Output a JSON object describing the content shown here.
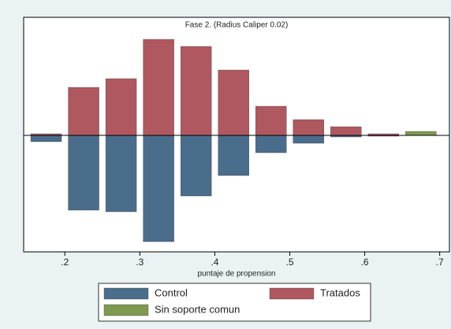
{
  "chart_data": {
    "type": "mirrored_histogram",
    "title": "Fase 2. (Radius Caliper 0.02)",
    "x_label": "puntaje de propension",
    "bins": [
      0.15,
      0.2,
      0.25,
      0.3,
      0.35,
      0.4,
      0.45,
      0.5,
      0.55,
      0.6,
      0.65,
      0.7
    ],
    "series": [
      {
        "name": "Control",
        "color": "#4a6d8c",
        "values": [
          -8,
          -95,
          -97,
          -135,
          -77,
          -51,
          -22,
          -10,
          -2,
          -1,
          0
        ]
      },
      {
        "name": "Tratados",
        "color": "#b0585f",
        "values": [
          2,
          61,
          72,
          122,
          113,
          83,
          37,
          20,
          11,
          2,
          0
        ]
      },
      {
        "name": "Sin soporte comun",
        "color": "#7e9a4f",
        "values": [
          0,
          0,
          0,
          0,
          0,
          0,
          0,
          0,
          0,
          0,
          5
        ]
      }
    ],
    "xlim": [
      0.145,
      0.713
    ],
    "ylim": [
      -148,
      130
    ],
    "xticks": [
      {
        "value": 0.2,
        "label": ".2"
      },
      {
        "value": 0.3,
        "label": ".3"
      },
      {
        "value": 0.4,
        "label": ".4"
      },
      {
        "value": 0.5,
        "label": ".5"
      },
      {
        "value": 0.6,
        "label": ".6"
      },
      {
        "value": 0.7,
        "label": ".7"
      }
    ]
  }
}
